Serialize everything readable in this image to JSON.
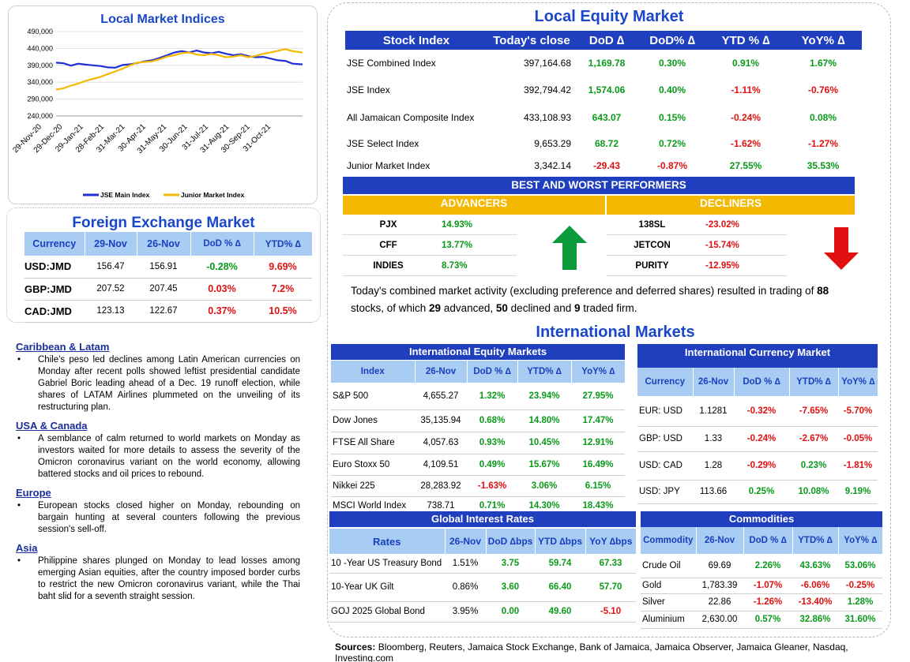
{
  "lmi": {
    "title": "Local Market Indices",
    "y_ticks": [
      "490,000",
      "440,000",
      "390,000",
      "340,000",
      "290,000",
      "240,000"
    ],
    "x_ticks": [
      "29-Nov-20",
      "29-Dec-20",
      "29-Jan-21",
      "28-Feb-21",
      "31-Mar-21",
      "30-Apr-21",
      "31-May-21",
      "30-Jun-21",
      "31-Jul-21",
      "31-Aug-21",
      "30-Sep-21",
      "31-Oct-21"
    ],
    "legend": [
      "JSE Main Index",
      "Junior Market Index"
    ],
    "colors": {
      "main": "#1f2fd6",
      "junior": "#f5b800"
    }
  },
  "chart_data": {
    "type": "line",
    "title": "Local Market Indices",
    "ylim": [
      240000,
      490000
    ],
    "x_range": [
      "2020-11-29",
      "2021-11-29"
    ],
    "series": [
      {
        "name": "JSE Main Index",
        "points": [
          [
            0,
            398000
          ],
          [
            0.03,
            396000
          ],
          [
            0.06,
            389000
          ],
          [
            0.09,
            395000
          ],
          [
            0.12,
            392000
          ],
          [
            0.15,
            390000
          ],
          [
            0.18,
            388000
          ],
          [
            0.21,
            384000
          ],
          [
            0.24,
            383000
          ],
          [
            0.27,
            391000
          ],
          [
            0.3,
            393000
          ],
          [
            0.33,
            397000
          ],
          [
            0.36,
            402000
          ],
          [
            0.39,
            405000
          ],
          [
            0.42,
            412000
          ],
          [
            0.45,
            420000
          ],
          [
            0.48,
            428000
          ],
          [
            0.51,
            432000
          ],
          [
            0.54,
            428000
          ],
          [
            0.57,
            434000
          ],
          [
            0.6,
            428000
          ],
          [
            0.63,
            426000
          ],
          [
            0.66,
            430000
          ],
          [
            0.69,
            424000
          ],
          [
            0.72,
            420000
          ],
          [
            0.75,
            423000
          ],
          [
            0.78,
            417000
          ],
          [
            0.81,
            414000
          ],
          [
            0.84,
            415000
          ],
          [
            0.87,
            410000
          ],
          [
            0.9,
            405000
          ],
          [
            0.93,
            403000
          ],
          [
            0.96,
            395000
          ],
          [
            1.0,
            392800
          ]
        ]
      },
      {
        "name": "Junior Market Index",
        "points": [
          [
            0,
            318000
          ],
          [
            0.03,
            322000
          ],
          [
            0.06,
            330000
          ],
          [
            0.09,
            336000
          ],
          [
            0.12,
            344000
          ],
          [
            0.15,
            350000
          ],
          [
            0.18,
            356000
          ],
          [
            0.21,
            364000
          ],
          [
            0.24,
            372000
          ],
          [
            0.27,
            380000
          ],
          [
            0.3,
            390000
          ],
          [
            0.33,
            398000
          ],
          [
            0.36,
            400000
          ],
          [
            0.39,
            402000
          ],
          [
            0.42,
            408000
          ],
          [
            0.45,
            416000
          ],
          [
            0.48,
            420000
          ],
          [
            0.51,
            426000
          ],
          [
            0.54,
            428000
          ],
          [
            0.57,
            422000
          ],
          [
            0.6,
            420000
          ],
          [
            0.63,
            424000
          ],
          [
            0.66,
            420000
          ],
          [
            0.69,
            414000
          ],
          [
            0.72,
            416000
          ],
          [
            0.75,
            420000
          ],
          [
            0.78,
            414000
          ],
          [
            0.81,
            418000
          ],
          [
            0.84,
            424000
          ],
          [
            0.87,
            428000
          ],
          [
            0.9,
            433000
          ],
          [
            0.93,
            438000
          ],
          [
            0.96,
            432000
          ],
          [
            1.0,
            428000
          ]
        ]
      }
    ]
  },
  "fx": {
    "title": "Foreign Exchange Market",
    "headers": [
      "Currency",
      "29-Nov",
      "26-Nov",
      "DoD % ∆",
      "YTD% ∆"
    ],
    "rows": [
      {
        "c": "USD:JMD",
        "a": "156.47",
        "b": "156.91",
        "d": "-0.28%",
        "y": "9.69%",
        "dc": "pos",
        "yc": "neg"
      },
      {
        "c": "GBP:JMD",
        "a": "207.52",
        "b": "207.45",
        "d": "0.03%",
        "y": "7.2%",
        "dc": "neg",
        "yc": "neg"
      },
      {
        "c": "CAD:JMD",
        "a": "123.13",
        "b": "122.67",
        "d": "0.37%",
        "y": "10.5%",
        "dc": "neg",
        "yc": "neg"
      }
    ]
  },
  "news": [
    {
      "head": "Caribbean & Latam",
      "text": "Chile's peso led declines among Latin American currencies on Monday after recent polls showed leftist presidential candidate Gabriel Boric leading ahead of a Dec. 19 runoff election, while shares of LATAM Airlines plummeted on the unveiling of its restructuring plan."
    },
    {
      "head": "USA & Canada",
      "text": "A semblance of calm returned to world markets on Monday as investors waited for more details to assess the severity of the Omicron coronavirus variant on the world economy, allowing battered stocks and oil prices to rebound."
    },
    {
      "head": "Europe",
      "text": "European stocks closed higher on Monday, rebounding on bargain hunting at several counters following the previous session's sell-off."
    },
    {
      "head": "Asia",
      "text": "Philippine shares plunged on Monday to lead losses among emerging Asian equities, after the country imposed border curbs to restrict the new Omicron coronavirus variant, while the Thai baht slid for a seventh straight session."
    }
  ],
  "lem": {
    "title": "Local Equity Market",
    "headers": [
      "Stock Index",
      "Today's close",
      "DoD  ∆",
      "DoD% ∆",
      "YTD % ∆",
      "YoY% ∆"
    ],
    "rows": [
      {
        "n": "JSE Combined Index",
        "c": "397,164.68",
        "d": "1,169.78",
        "dp": "0.30%",
        "y": "0.91%",
        "yy": "1.67%",
        "cls": [
          "pos",
          "pos",
          "pos",
          "pos"
        ]
      },
      {
        "n": "JSE Index",
        "c": "392,794.42",
        "d": "1,574.06",
        "dp": "0.40%",
        "y": "-1.11%",
        "yy": "-0.76%",
        "cls": [
          "pos",
          "pos",
          "neg",
          "neg"
        ]
      },
      {
        "n": "All Jamaican Composite Index",
        "c": "433,108.93",
        "d": "643.07",
        "dp": "0.15%",
        "y": "-0.24%",
        "yy": "0.08%",
        "cls": [
          "pos",
          "pos",
          "neg",
          "pos"
        ]
      },
      {
        "n": "JSE Select Index",
        "c": "9,653.29",
        "d": "68.72",
        "dp": "0.72%",
        "y": "-1.62%",
        "yy": "-1.27%",
        "cls": [
          "pos",
          "pos",
          "neg",
          "neg"
        ]
      },
      {
        "n": "Junior Market Index",
        "c": "3,342.14",
        "d": "-29.43",
        "dp": "-0.87%",
        "y": "27.55%",
        "yy": "35.53%",
        "cls": [
          "neg",
          "neg",
          "pos",
          "pos"
        ]
      }
    ]
  },
  "bw": {
    "title": "BEST AND WORST PERFORMERS",
    "adv_label": "ADVANCERS",
    "dec_label": "DECLINERS",
    "advancers": [
      {
        "s": "PJX",
        "v": "14.93%"
      },
      {
        "s": "CFF",
        "v": "13.77%"
      },
      {
        "s": "INDIES",
        "v": "8.73%"
      }
    ],
    "decliners": [
      {
        "s": "138SL",
        "v": "-23.02%"
      },
      {
        "s": "JETCON",
        "v": "-15.74%"
      },
      {
        "s": "PURITY",
        "v": "-12.95%"
      }
    ],
    "arrow_up_color": "#0a9a3a",
    "arrow_down_color": "#e01010"
  },
  "activity": {
    "t1": "Today's combined market activity (excluding preference and deferred shares) resulted in trading of ",
    "n1": "88",
    "t2": " stocks, of which ",
    "n2": "29",
    "t3": " advanced, ",
    "n3": "50",
    "t4": " declined and ",
    "n4": "9",
    "t5": " traded firm."
  },
  "intl": {
    "title": "International Markets",
    "equity": {
      "title": "International Equity Markets",
      "headers": [
        "Index",
        "26-Nov",
        "DoD % ∆",
        "YTD% ∆",
        "YoY% ∆"
      ],
      "rows": [
        {
          "n": "S&P 500",
          "c": "4,655.27",
          "d": "1.32%",
          "y": "23.94%",
          "yy": "27.95%",
          "cls": [
            "pos",
            "pos",
            "pos"
          ]
        },
        {
          "n": "Dow Jones",
          "c": "35,135.94",
          "d": "0.68%",
          "y": "14.80%",
          "yy": "17.47%",
          "cls": [
            "pos",
            "pos",
            "pos"
          ]
        },
        {
          "n": "FTSE All Share",
          "c": "4,057.63",
          "d": "0.93%",
          "y": "10.45%",
          "yy": "12.91%",
          "cls": [
            "pos",
            "pos",
            "pos"
          ]
        },
        {
          "n": "Euro Stoxx 50",
          "c": "4,109.51",
          "d": "0.49%",
          "y": "15.67%",
          "yy": "16.49%",
          "cls": [
            "pos",
            "pos",
            "pos"
          ]
        },
        {
          "n": "Nikkei 225",
          "c": "28,283.92",
          "d": "-1.63%",
          "y": "3.06%",
          "yy": "6.15%",
          "cls": [
            "neg",
            "pos",
            "pos"
          ]
        },
        {
          "n": "MSCI World Index",
          "c": "738.71",
          "d": "0.71%",
          "y": "14.30%",
          "yy": "18.43%",
          "cls": [
            "pos",
            "pos",
            "pos"
          ]
        }
      ]
    },
    "currency": {
      "title": "International Currency Market",
      "headers": [
        "Currency",
        "26-Nov",
        "DoD % ∆",
        "YTD% ∆",
        "YoY% ∆"
      ],
      "rows": [
        {
          "n": "EUR: USD",
          "c": "1.1281",
          "d": "-0.32%",
          "y": "-7.65%",
          "yy": "-5.70%",
          "cls": [
            "neg",
            "neg",
            "neg"
          ]
        },
        {
          "n": "GBP: USD",
          "c": "1.33",
          "d": "-0.24%",
          "y": "-2.67%",
          "yy": "-0.05%",
          "cls": [
            "neg",
            "neg",
            "neg"
          ]
        },
        {
          "n": "USD: CAD",
          "c": "1.28",
          "d": "-0.29%",
          "y": "0.23%",
          "yy": "-1.81%",
          "cls": [
            "neg",
            "pos",
            "neg"
          ]
        },
        {
          "n": "USD: JPY",
          "c": "113.66",
          "d": "0.25%",
          "y": "10.08%",
          "yy": "9.19%",
          "cls": [
            "pos",
            "pos",
            "pos"
          ]
        }
      ]
    },
    "rates": {
      "title": "Global Interest Rates",
      "headers": [
        "Rates",
        "26-Nov",
        "DoD ∆bps",
        "YTD ∆bps",
        "YoY ∆bps"
      ],
      "rows": [
        {
          "n": "10 -Year US Treasury Bond",
          "c": "1.51%",
          "d": "3.75",
          "y": "59.74",
          "yy": "67.33",
          "cls": [
            "pos",
            "pos",
            "pos"
          ]
        },
        {
          "n": "10-Year UK Gilt",
          "c": "0.86%",
          "d": "3.60",
          "y": "66.40",
          "yy": "57.70",
          "cls": [
            "pos",
            "pos",
            "pos"
          ]
        },
        {
          "n": "GOJ 2025 Global Bond",
          "c": "3.95%",
          "d": "0.00",
          "y": "49.60",
          "yy": "-5.10",
          "cls": [
            "pos",
            "pos",
            "neg"
          ]
        }
      ]
    },
    "commod": {
      "title": "Commodities",
      "headers": [
        "Commodity",
        "26-Nov",
        "DoD % ∆",
        "YTD% ∆",
        "YoY% ∆"
      ],
      "rows": [
        {
          "n": "Crude Oil",
          "c": "69.69",
          "d": "2.26%",
          "y": "43.63%",
          "yy": "53.06%",
          "cls": [
            "pos",
            "pos",
            "pos"
          ]
        },
        {
          "n": "Gold",
          "c": "1,783.39",
          "d": "-1.07%",
          "y": "-6.06%",
          "yy": "-0.25%",
          "cls": [
            "neg",
            "neg",
            "neg"
          ]
        },
        {
          "n": "Silver",
          "c": "22.86",
          "d": "-1.26%",
          "y": "-13.40%",
          "yy": "1.28%",
          "cls": [
            "neg",
            "neg",
            "pos"
          ]
        },
        {
          "n": "Aluminium",
          "c": "2,630.00",
          "d": "0.57%",
          "y": "32.86%",
          "yy": "31.60%",
          "cls": [
            "pos",
            "pos",
            "pos"
          ]
        }
      ]
    }
  },
  "sources": {
    "label": "Sources:",
    "text": " Bloomberg, Reuters, Jamaica Stock Exchange, Bank of Jamaica, Jamaica Observer, Jamaica Gleaner, Nasdaq, Investing.com"
  }
}
